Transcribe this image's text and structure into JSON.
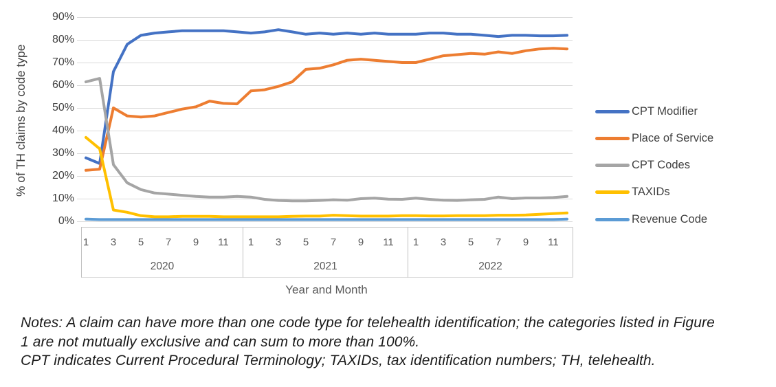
{
  "chart_data": {
    "type": "line",
    "title": "",
    "ylabel": "% of TH claims by code type",
    "xlabel": "Year and Month",
    "ylim": [
      0,
      90
    ],
    "ytick_labels": [
      "90%",
      "80%",
      "70%",
      "60%",
      "50%",
      "40%",
      "30%",
      "20%",
      "10%",
      "0%"
    ],
    "grid": true,
    "legend_position": "right",
    "x_axis": {
      "years": [
        "2020",
        "2021",
        "2022"
      ],
      "months_per_year": 12,
      "month_tick_labels": [
        "1",
        "3",
        "5",
        "7",
        "9",
        "11"
      ]
    },
    "series": [
      {
        "name": "CPT Modifier",
        "color": "#4472C4",
        "values": [
          28,
          25.5,
          66,
          78,
          82,
          83,
          83.5,
          84,
          84,
          84,
          84,
          83.5,
          83,
          83.5,
          84.5,
          83.5,
          82.5,
          83,
          82.5,
          83,
          82.5,
          83,
          82.5,
          82.5,
          82.5,
          83,
          83,
          82.5,
          82.5,
          82,
          81.5,
          82,
          82,
          81.8,
          81.8,
          82
        ]
      },
      {
        "name": "Place of Service",
        "color": "#ED7D31",
        "values": [
          22.5,
          23,
          50,
          46.5,
          46,
          46.5,
          48,
          49.5,
          50.5,
          53,
          52,
          51.8,
          57.5,
          58,
          59.5,
          61.5,
          67,
          67.5,
          69,
          71,
          71.5,
          71,
          70.5,
          70,
          70,
          71.5,
          73,
          73.5,
          74,
          73.7,
          74.7,
          74,
          75.2,
          76,
          76.3,
          76
        ]
      },
      {
        "name": "CPT Codes",
        "color": "#A5A5A5",
        "values": [
          61.5,
          63,
          25,
          17,
          14,
          12.5,
          12,
          11.5,
          11,
          10.7,
          10.7,
          11,
          10.7,
          9.7,
          9.2,
          9,
          9,
          9.2,
          9.5,
          9.3,
          10,
          10.2,
          9.8,
          9.7,
          10.2,
          9.7,
          9.3,
          9.2,
          9.5,
          9.7,
          10.7,
          10,
          10.3,
          10.3,
          10.5,
          11
        ]
      },
      {
        "name": "TAXIDs",
        "color": "#FFC000",
        "values": [
          37,
          32,
          5,
          4,
          2.5,
          2,
          2,
          2.2,
          2.2,
          2.2,
          2,
          2,
          2,
          2,
          2,
          2.2,
          2.3,
          2.3,
          2.7,
          2.5,
          2.3,
          2.3,
          2.3,
          2.5,
          2.5,
          2.4,
          2.4,
          2.5,
          2.5,
          2.5,
          2.7,
          2.7,
          2.8,
          3.1,
          3.4,
          3.7
        ]
      },
      {
        "name": "Revenue Code",
        "color": "#5B9BD5",
        "values": [
          1,
          0.8,
          0.8,
          0.8,
          0.8,
          0.8,
          0.8,
          0.8,
          0.8,
          0.8,
          0.8,
          0.8,
          0.8,
          0.8,
          0.8,
          0.8,
          0.8,
          0.8,
          0.8,
          0.8,
          0.8,
          0.8,
          0.8,
          0.8,
          0.8,
          0.8,
          0.8,
          0.8,
          0.8,
          0.8,
          0.8,
          0.8,
          0.8,
          0.8,
          0.8,
          1
        ]
      }
    ]
  },
  "notes": {
    "lines": [
      "Notes: A claim can have more than one code type for telehealth identification; the categories listed in Figure",
      "1 are not mutually exclusive and can sum to more than 100%.",
      "CPT indicates Current Procedural Terminology; TAXIDs, tax identification numbers; TH, telehealth."
    ]
  },
  "colors": {
    "gridline": "#D9D9D9",
    "axis_line": "#BFBFBF",
    "tick_label_text": "#404040",
    "category_label_text": "#595959",
    "notes_text": "#1a1a1a",
    "background": "#FFFFFF"
  }
}
